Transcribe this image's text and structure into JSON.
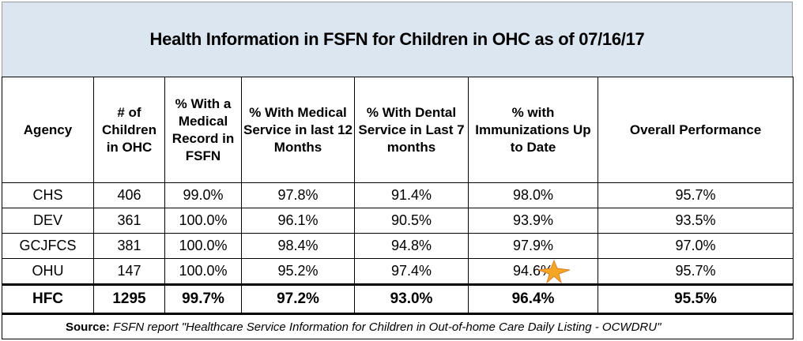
{
  "title": "Health Information in FSFN for Children in OHC as of 07/16/17",
  "table": {
    "header": [
      "Agency",
      "# of Children in OHC",
      "% With a Medical Record in FSFN",
      "% With Medical Service in last 12 Months",
      "% With Dental Service in Last 7 months",
      "% with Immunizations Up to Date",
      "Overall Performance"
    ],
    "rows": [
      [
        "CHS",
        "406",
        "99.0%",
        "97.8%",
        "91.4%",
        "98.0%",
        "95.7%"
      ],
      [
        "DEV",
        "361",
        "100.0%",
        "96.1%",
        "90.5%",
        "93.9%",
        "93.5%"
      ],
      [
        "GCJFCS",
        "381",
        "100.0%",
        "98.4%",
        "94.8%",
        "97.9%",
        "97.0%"
      ],
      [
        "OHU",
        "147",
        "100.0%",
        "95.2%",
        "97.4%",
        "94.6%",
        "95.7%"
      ]
    ],
    "total": [
      "HFC",
      "1295",
      "99.7%",
      "97.2%",
      "93.0%",
      "96.4%",
      "95.5%"
    ]
  },
  "source": {
    "label": "Source:",
    "text": "FSFN report \"Healthcare Service Information for Children in Out-of-home Care  Daily Listing - OCWDRU\""
  }
}
